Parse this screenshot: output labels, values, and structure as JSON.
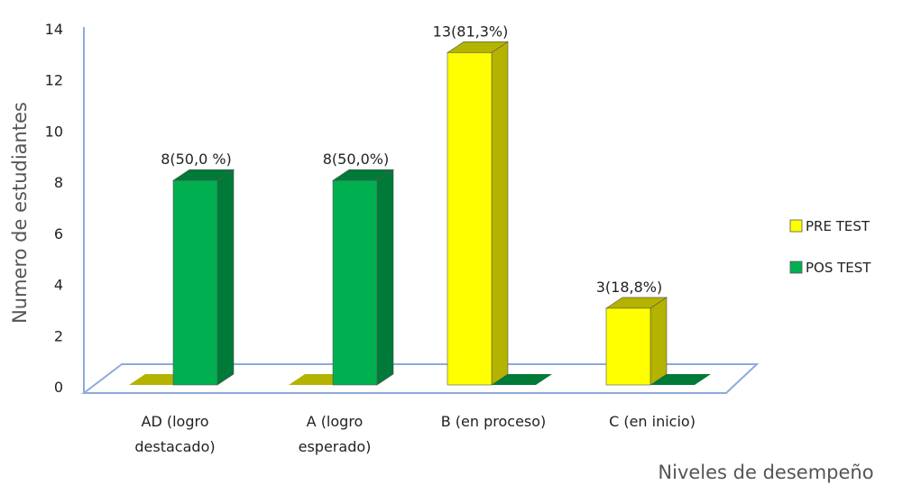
{
  "chart_data": {
    "type": "bar",
    "title": "",
    "xlabel": "Niveles de desempeño",
    "ylabel": "Numero de estudiantes",
    "ylim": [
      0,
      14
    ],
    "yticks": [
      "0",
      "2",
      "4",
      "6",
      "8",
      "10",
      "12",
      "14"
    ],
    "categories": [
      [
        "AD (logro",
        "destacado)"
      ],
      [
        "A (logro",
        "esperado)"
      ],
      [
        "B (en proceso)"
      ],
      [
        "C (en inicio)"
      ]
    ],
    "series": [
      {
        "name": "PRE TEST",
        "color": "#ffff00",
        "side_color": "#b3b300",
        "values": [
          0,
          0,
          13,
          3
        ],
        "labels": [
          "",
          "",
          "13(81,3%)",
          "3(18,8%)"
        ]
      },
      {
        "name": "POS TEST",
        "color": "#00b050",
        "side_color": "#007a38",
        "values": [
          8,
          8,
          0,
          0
        ],
        "labels": [
          "8(50,0 %)",
          "8(50,0%)",
          "",
          ""
        ]
      }
    ],
    "legend_position": "right",
    "grid": false,
    "style": "3d-column"
  }
}
